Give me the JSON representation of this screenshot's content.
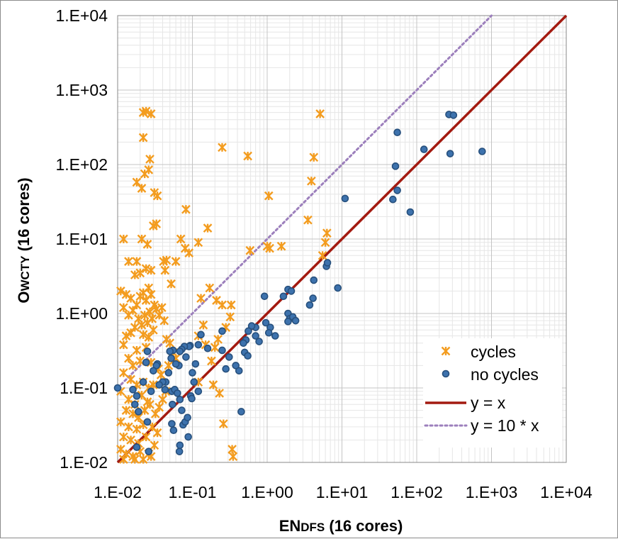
{
  "chart_data": {
    "type": "scatter",
    "title": "",
    "xlabel": {
      "main": "EN",
      "sub": "DFS",
      "rest": " (16 cores)"
    },
    "ylabel": {
      "main": "O",
      "sub": "WCTY",
      "rest": " (16 cores)"
    },
    "xscale": "log",
    "yscale": "log",
    "xlim": [
      0.01,
      10000
    ],
    "ylim": [
      0.01,
      10000
    ],
    "x_ticks": [
      "1.E-02",
      "1.E-01",
      "1.E+00",
      "1.E+01",
      "1.E+02",
      "1.E+03",
      "1.E+04"
    ],
    "y_ticks": [
      "1.E-02",
      "1.E-01",
      "1.E+00",
      "1.E+01",
      "1.E+02",
      "1.E+03",
      "1.E+04"
    ],
    "grid": "major and minor",
    "legend_position": "bottom-right",
    "colors": {
      "cycles": "#f39c1f",
      "no_cycles": "#3d72ad",
      "no_cycles_edge": "#27507d",
      "identity": "#a31a10",
      "tenx": "#9c7fbc"
    },
    "series": [
      {
        "name": "cycles",
        "marker": "asterisk",
        "points": [
          [
            0.022,
            500
          ],
          [
            0.024,
            520
          ],
          [
            0.028,
            480
          ],
          [
            0.022,
            230
          ],
          [
            0.018,
            58
          ],
          [
            0.021,
            48
          ],
          [
            0.023,
            75
          ],
          [
            0.027,
            118
          ],
          [
            0.026,
            85
          ],
          [
            0.031,
            42
          ],
          [
            0.034,
            38
          ],
          [
            0.03,
            15
          ],
          [
            0.033,
            16
          ],
          [
            0.012,
            10
          ],
          [
            0.021,
            10
          ],
          [
            0.025,
            8.5
          ],
          [
            0.017,
            3.3
          ],
          [
            0.014,
            5
          ],
          [
            0.018,
            5
          ],
          [
            0.02,
            3.5
          ],
          [
            0.024,
            4
          ],
          [
            0.028,
            3.8
          ],
          [
            0.041,
            5
          ],
          [
            0.045,
            5.2
          ],
          [
            0.043,
            3.8
          ],
          [
            0.07,
            10
          ],
          [
            0.08,
            7.5
          ],
          [
            0.06,
            5
          ],
          [
            0.082,
            25
          ],
          [
            0.25,
            170
          ],
          [
            0.55,
            130
          ],
          [
            5.1,
            480
          ],
          [
            4.2,
            125
          ],
          [
            3.9,
            60
          ],
          [
            0.16,
            14
          ],
          [
            0.12,
            9
          ],
          [
            0.09,
            6.5
          ],
          [
            0.59,
            7
          ],
          [
            1.0,
            8
          ],
          [
            1.55,
            8
          ],
          [
            1.08,
            7.5
          ],
          [
            1.05,
            38
          ],
          [
            3.5,
            18
          ],
          [
            5.5,
            6
          ],
          [
            6.0,
            9
          ],
          [
            6.3,
            12
          ],
          [
            0.052,
            2.5
          ],
          [
            0.13,
            1.6
          ],
          [
            0.17,
            2.2
          ],
          [
            0.21,
            1.5
          ],
          [
            0.25,
            1.3
          ],
          [
            0.33,
            1.3
          ],
          [
            0.32,
            0.9
          ],
          [
            0.28,
            0.65
          ],
          [
            0.14,
            0.7
          ],
          [
            0.12,
            0.5
          ],
          [
            0.15,
            0.38
          ],
          [
            0.18,
            0.23
          ],
          [
            0.2,
            0.35
          ],
          [
            0.22,
            0.45
          ],
          [
            0.12,
            0.12
          ],
          [
            0.19,
            0.11
          ],
          [
            0.23,
            0.085
          ],
          [
            0.26,
            0.033
          ],
          [
            0.34,
            0.015
          ],
          [
            0.35,
            0.012
          ],
          [
            0.011,
            2.0
          ],
          [
            0.013,
            1.8
          ],
          [
            0.015,
            1.6
          ],
          [
            0.012,
            1.2
          ],
          [
            0.016,
            1.1
          ],
          [
            0.014,
            0.95
          ],
          [
            0.018,
            1.3
          ],
          [
            0.02,
            1.7
          ],
          [
            0.022,
            1.9
          ],
          [
            0.024,
            1.5
          ],
          [
            0.026,
            2.2
          ],
          [
            0.028,
            1.8
          ],
          [
            0.019,
            0.85
          ],
          [
            0.021,
            0.7
          ],
          [
            0.023,
            0.95
          ],
          [
            0.025,
            0.75
          ],
          [
            0.027,
            1.05
          ],
          [
            0.029,
            0.85
          ],
          [
            0.031,
            1.3
          ],
          [
            0.033,
            1.15
          ],
          [
            0.036,
            0.95
          ],
          [
            0.039,
            1.2
          ],
          [
            0.042,
            0.8
          ],
          [
            0.017,
            0.65
          ],
          [
            0.015,
            0.55
          ],
          [
            0.013,
            0.5
          ],
          [
            0.022,
            0.52
          ],
          [
            0.026,
            0.48
          ],
          [
            0.03,
            0.6
          ],
          [
            0.012,
            0.38
          ],
          [
            0.018,
            0.32
          ],
          [
            0.024,
            0.35
          ],
          [
            0.014,
            0.25
          ],
          [
            0.016,
            0.2
          ],
          [
            0.02,
            0.23
          ],
          [
            0.028,
            0.22
          ],
          [
            0.045,
            0.45
          ],
          [
            0.05,
            0.4
          ],
          [
            0.055,
            0.3
          ],
          [
            0.06,
            0.25
          ],
          [
            0.048,
            0.2
          ],
          [
            0.035,
            0.18
          ],
          [
            0.038,
            0.15
          ],
          [
            0.012,
            0.16
          ],
          [
            0.015,
            0.13
          ],
          [
            0.018,
            0.11
          ],
          [
            0.022,
            0.12
          ],
          [
            0.026,
            0.1
          ],
          [
            0.03,
            0.11
          ],
          [
            0.011,
            0.09
          ],
          [
            0.014,
            0.07
          ],
          [
            0.017,
            0.06
          ],
          [
            0.021,
            0.08
          ],
          [
            0.025,
            0.065
          ],
          [
            0.013,
            0.05
          ],
          [
            0.016,
            0.045
          ],
          [
            0.019,
            0.04
          ],
          [
            0.023,
            0.05
          ],
          [
            0.011,
            0.035
          ],
          [
            0.014,
            0.03
          ],
          [
            0.018,
            0.028
          ],
          [
            0.022,
            0.032
          ],
          [
            0.012,
            0.022
          ],
          [
            0.015,
            0.02
          ],
          [
            0.019,
            0.018
          ],
          [
            0.024,
            0.022
          ],
          [
            0.011,
            0.015
          ],
          [
            0.013,
            0.013
          ],
          [
            0.016,
            0.012
          ],
          [
            0.02,
            0.014
          ],
          [
            0.026,
            0.013
          ],
          [
            0.012,
            0.011
          ],
          [
            0.017,
            0.011
          ],
          [
            0.022,
            0.011
          ],
          [
            0.028,
            0.012
          ],
          [
            0.031,
            0.017
          ],
          [
            0.034,
            0.025
          ],
          [
            0.029,
            0.03
          ],
          [
            0.032,
            0.045
          ],
          [
            0.036,
            0.055
          ],
          [
            0.04,
            0.07
          ],
          [
            0.044,
            0.09
          ],
          [
            0.027,
            0.06
          ]
        ]
      },
      {
        "name": "no cycles",
        "marker": "circle",
        "points": [
          [
            55,
            270
          ],
          [
            270,
            470
          ],
          [
            310,
            460
          ],
          [
            125,
            160
          ],
          [
            52,
            95
          ],
          [
            48,
            34
          ],
          [
            55,
            45
          ],
          [
            82,
            23
          ],
          [
            280,
            140
          ],
          [
            750,
            150
          ],
          [
            11,
            35
          ],
          [
            6.2,
            4.3
          ],
          [
            6.4,
            4.8
          ],
          [
            8.8,
            2.2
          ],
          [
            4.2,
            2.8
          ],
          [
            4.1,
            1.6
          ],
          [
            3.7,
            1.3
          ],
          [
            1.9,
            2.1
          ],
          [
            2.1,
            2.0
          ],
          [
            1.65,
            1.7
          ],
          [
            1.9,
            1.0
          ],
          [
            2.0,
            0.85
          ],
          [
            2.2,
            0.9
          ],
          [
            2.4,
            0.8
          ],
          [
            1.9,
            0.78
          ],
          [
            0.92,
            1.7
          ],
          [
            0.96,
            0.75
          ],
          [
            1.1,
            0.65
          ],
          [
            1.28,
            0.5
          ],
          [
            1.05,
            0.55
          ],
          [
            0.78,
            0.42
          ],
          [
            0.7,
            0.5
          ],
          [
            0.52,
            0.44
          ],
          [
            0.48,
            0.4
          ],
          [
            0.5,
            0.3
          ],
          [
            0.55,
            0.27
          ],
          [
            0.42,
            0.17
          ],
          [
            0.38,
            0.2
          ],
          [
            0.31,
            0.26
          ],
          [
            0.25,
            0.58
          ],
          [
            0.25,
            0.32
          ],
          [
            0.28,
            0.18
          ],
          [
            0.16,
            0.34
          ],
          [
            0.12,
            0.38
          ],
          [
            0.13,
            0.52
          ],
          [
            0.11,
            0.21
          ],
          [
            0.1,
            0.16
          ],
          [
            0.093,
            0.37
          ],
          [
            0.09,
            0.36
          ],
          [
            0.078,
            0.36
          ],
          [
            0.082,
            0.26
          ],
          [
            0.072,
            0.33
          ],
          [
            0.068,
            0.31
          ],
          [
            0.066,
            0.2
          ],
          [
            0.06,
            0.21
          ],
          [
            0.055,
            0.32
          ],
          [
            0.05,
            0.31
          ],
          [
            0.052,
            0.25
          ],
          [
            0.048,
            0.16
          ],
          [
            0.044,
            0.12
          ],
          [
            0.043,
            0.095
          ],
          [
            0.04,
            0.12
          ],
          [
            0.036,
            0.11
          ],
          [
            0.034,
            0.21
          ],
          [
            0.033,
            0.2
          ],
          [
            0.03,
            0.17
          ],
          [
            0.025,
            0.31
          ],
          [
            0.024,
            0.22
          ],
          [
            0.022,
            0.12
          ],
          [
            0.028,
            0.09
          ],
          [
            0.025,
            0.035
          ],
          [
            0.018,
            0.078
          ],
          [
            0.019,
            0.048
          ],
          [
            0.01,
            0.1
          ],
          [
            0.016,
            0.095
          ],
          [
            0.017,
            0.06
          ],
          [
            0.026,
            0.014
          ],
          [
            0.018,
            0.016
          ],
          [
            0.053,
            0.09
          ],
          [
            0.058,
            0.095
          ],
          [
            0.063,
            0.085
          ],
          [
            0.054,
            0.06
          ],
          [
            0.068,
            0.07
          ],
          [
            0.072,
            0.05
          ],
          [
            0.075,
            0.032
          ],
          [
            0.08,
            0.035
          ],
          [
            0.086,
            0.04
          ],
          [
            0.095,
            0.078
          ],
          [
            0.098,
            0.072
          ],
          [
            0.105,
            0.12
          ],
          [
            0.053,
            0.033
          ],
          [
            0.056,
            0.027
          ],
          [
            0.067,
            0.014
          ],
          [
            0.068,
            0.017
          ],
          [
            0.088,
            0.022
          ],
          [
            0.12,
            0.09
          ],
          [
            0.45,
            0.048
          ],
          [
            0.7,
            0.65
          ],
          [
            0.62,
            0.68
          ],
          [
            0.56,
            0.58
          ]
        ]
      },
      {
        "name": "y = x",
        "marker": "line",
        "style": "solid",
        "slope": 1
      },
      {
        "name": "y = 10 * x",
        "marker": "line",
        "style": "dotted",
        "slope": 10
      }
    ]
  }
}
